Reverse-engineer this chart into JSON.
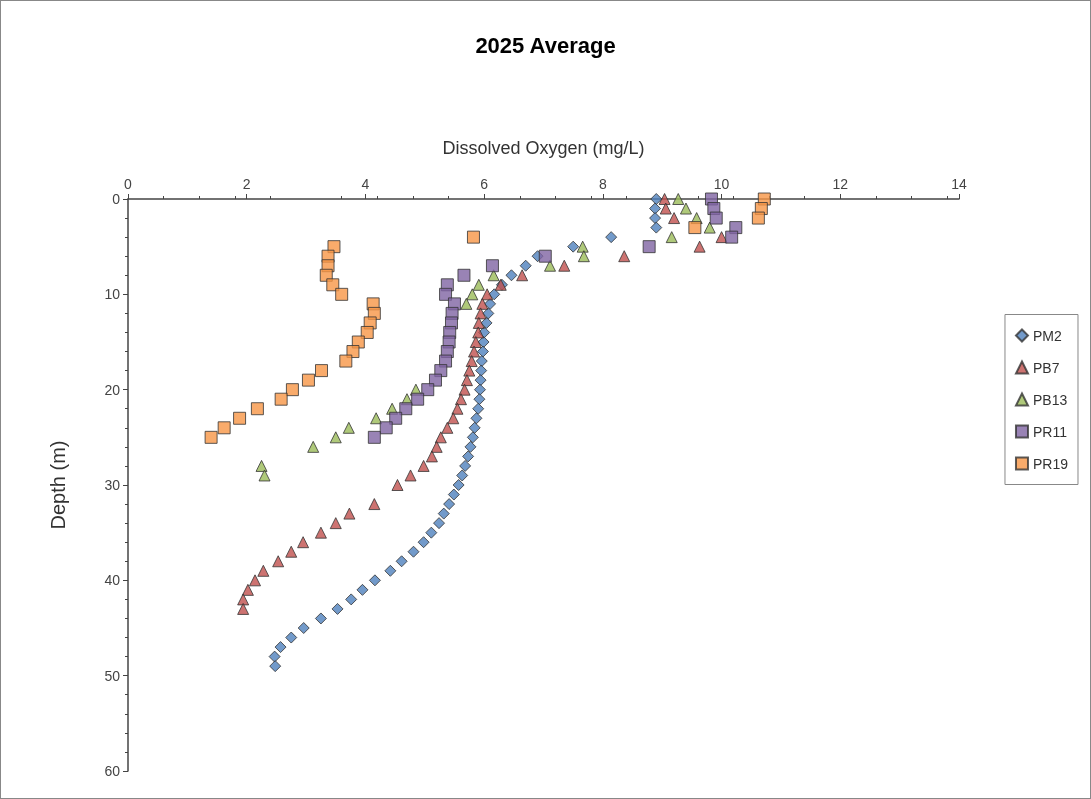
{
  "chart_data": {
    "type": "scatter",
    "title": "2025 Average",
    "xlabel": "Dissolved Oxygen (mg/L)",
    "ylabel": "Depth (m)",
    "xlim": [
      0,
      14
    ],
    "xticks": [
      0,
      2,
      4,
      6,
      8,
      10,
      12,
      14
    ],
    "ylim": [
      60,
      0
    ],
    "yticks": [
      0,
      10,
      20,
      30,
      40,
      50,
      60
    ],
    "grid": false,
    "legend": "right",
    "series": [
      {
        "name": "PM2",
        "color": "#4f81bd",
        "marker": "diamond",
        "x": [
          8.9,
          8.88,
          8.88,
          8.9,
          8.14,
          7.5,
          6.9,
          6.7,
          6.46,
          6.3,
          6.17,
          6.1,
          6.07,
          6.04,
          6.0,
          5.99,
          5.98,
          5.96,
          5.95,
          5.94,
          5.93,
          5.92,
          5.9,
          5.87,
          5.84,
          5.81,
          5.77,
          5.73,
          5.68,
          5.63,
          5.57,
          5.49,
          5.41,
          5.32,
          5.24,
          5.11,
          4.98,
          4.81,
          4.61,
          4.42,
          4.16,
          3.95,
          3.76,
          3.53,
          3.25,
          2.96,
          2.75,
          2.57,
          2.47,
          2.48
        ],
        "values": [
          0,
          1,
          2,
          3,
          4,
          5,
          6,
          7,
          8,
          9,
          10,
          11,
          12,
          13,
          14,
          15,
          16,
          17,
          18,
          19,
          20,
          21,
          22,
          23,
          24,
          25,
          26,
          27,
          28,
          29,
          30,
          31,
          32,
          33,
          34,
          35,
          36,
          37,
          38,
          39,
          40,
          41,
          42,
          43,
          44,
          45,
          46,
          47,
          48,
          49
        ]
      },
      {
        "name": "PB7",
        "color": "#c0504d",
        "marker": "triangle",
        "x": [
          9.04,
          9.06,
          9.2,
          10.0,
          9.63,
          8.36,
          7.35,
          6.64,
          6.28,
          6.05,
          5.97,
          5.94,
          5.91,
          5.9,
          5.86,
          5.83,
          5.79,
          5.75,
          5.71,
          5.67,
          5.61,
          5.55,
          5.48,
          5.38,
          5.27,
          5.2,
          5.12,
          4.98,
          4.76,
          4.54,
          4.15,
          3.73,
          3.5,
          3.25,
          2.95,
          2.75,
          2.53,
          2.28,
          2.14,
          2.02,
          1.94,
          1.94
        ],
        "values": [
          0,
          1,
          2,
          4,
          5,
          6,
          7,
          8,
          9,
          10,
          11,
          12,
          13,
          14,
          15,
          16,
          17,
          18,
          19,
          20,
          21,
          22,
          23,
          24,
          25,
          26,
          27,
          28,
          29,
          30,
          32,
          33,
          34,
          35,
          36,
          37,
          38,
          39,
          40,
          41,
          42,
          43
        ]
      },
      {
        "name": "PB13",
        "color": "#9bbb59",
        "marker": "triangle",
        "x": [
          9.27,
          9.4,
          9.58,
          9.8,
          9.16,
          7.66,
          7.68,
          7.11,
          6.16,
          5.91,
          5.8,
          5.7,
          4.85,
          4.7,
          4.45,
          4.18,
          3.72,
          3.5,
          3.12,
          2.25,
          2.3
        ],
        "values": [
          0,
          1,
          2,
          3,
          4,
          5,
          6,
          7,
          8,
          9,
          10,
          11,
          20,
          21,
          22,
          23,
          24,
          25,
          26,
          28,
          29
        ]
      },
      {
        "name": "PR11",
        "color": "#8064a2",
        "marker": "square",
        "x": [
          9.83,
          9.87,
          9.91,
          10.24,
          10.17,
          8.78,
          7.03,
          6.14,
          5.66,
          5.38,
          5.35,
          5.5,
          5.46,
          5.45,
          5.42,
          5.41,
          5.38,
          5.35,
          5.27,
          5.18,
          5.05,
          4.88,
          4.68,
          4.51,
          4.35,
          4.15
        ],
        "values": [
          0,
          1,
          2,
          3,
          4,
          5,
          6,
          7,
          8,
          9,
          10,
          11,
          12,
          13,
          14,
          15,
          16,
          17,
          18,
          19,
          20,
          21,
          22,
          23,
          24,
          25
        ]
      },
      {
        "name": "PR19",
        "color": "#f79646",
        "marker": "square",
        "x": [
          10.72,
          10.67,
          10.62,
          9.55,
          5.82,
          3.47,
          3.37,
          3.37,
          3.34,
          3.45,
          3.6,
          4.13,
          4.15,
          4.08,
          4.03,
          3.88,
          3.79,
          3.67,
          3.26,
          3.04,
          2.77,
          2.58,
          2.18,
          1.88,
          1.62,
          1.4
        ],
        "values": [
          0,
          1,
          2,
          3,
          4,
          5,
          6,
          7,
          8,
          9,
          10,
          11,
          12,
          13,
          14,
          15,
          16,
          17,
          18,
          19,
          20,
          21,
          22,
          23,
          24,
          25
        ]
      }
    ]
  }
}
